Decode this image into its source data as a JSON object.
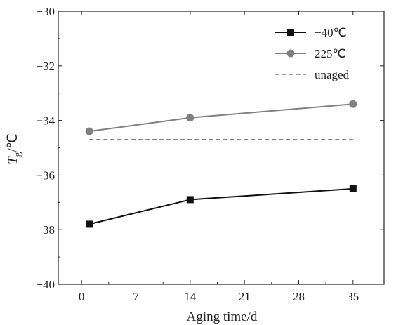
{
  "chart_data": {
    "type": "line",
    "xlabel": "Aging time/d",
    "ylabel_main": "T",
    "ylabel_sub": "g",
    "ylabel_unit": "/℃",
    "xlim": [
      -3,
      39
    ],
    "ylim": [
      -40,
      -30
    ],
    "xticks": [
      0,
      7,
      14,
      21,
      28,
      35
    ],
    "xtick_labels": [
      "0",
      "7",
      "14",
      "21",
      "28",
      "35"
    ],
    "yticks": [
      -40,
      -38,
      -36,
      -34,
      -32,
      -30
    ],
    "ytick_labels": [
      "−40",
      "−38",
      "−36",
      "−34",
      "−32",
      "−30"
    ],
    "grid": false,
    "legend_position": "top-right",
    "series": [
      {
        "name": "−40℃",
        "x": [
          1,
          14,
          35
        ],
        "y": [
          -37.8,
          -36.9,
          -36.5
        ],
        "color": "#111111",
        "marker": "square",
        "line_style": "solid"
      },
      {
        "name": "225℃",
        "x": [
          1,
          14,
          35
        ],
        "y": [
          -34.4,
          -33.9,
          -33.4
        ],
        "color": "#808080",
        "marker": "circle",
        "line_style": "solid"
      },
      {
        "name": "unaged",
        "x": [
          1,
          35
        ],
        "y": [
          -34.7,
          -34.7
        ],
        "color": "#808080",
        "marker": "none",
        "line_style": "dashed"
      }
    ]
  }
}
